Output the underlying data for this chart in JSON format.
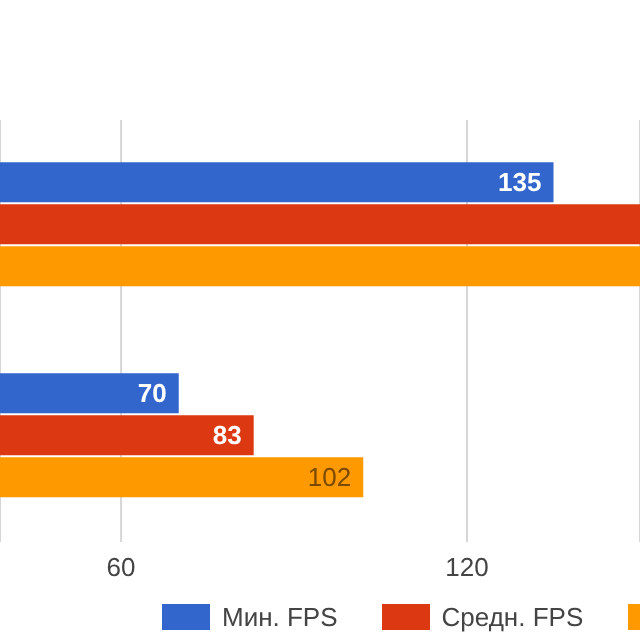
{
  "chart_data": {
    "type": "bar",
    "orientation": "horizontal",
    "categories": [
      null,
      null
    ],
    "series": [
      {
        "name": "Мин. FPS",
        "color": "#3366cc",
        "values": [
          135,
          70
        ],
        "value_labels": [
          "135",
          "70"
        ]
      },
      {
        "name": "Средн. FPS",
        "color": "#dc3912",
        "values": [
          150,
          83
        ],
        "value_labels": [
          null,
          "83"
        ]
      },
      {
        "color": "#ff9900",
        "values": [
          150,
          102
        ],
        "value_labels": [
          null,
          "102"
        ]
      }
    ],
    "xlim": [
      39,
      150
    ],
    "xticks": [
      60,
      120
    ],
    "grid": "x",
    "legend": "bottom"
  }
}
